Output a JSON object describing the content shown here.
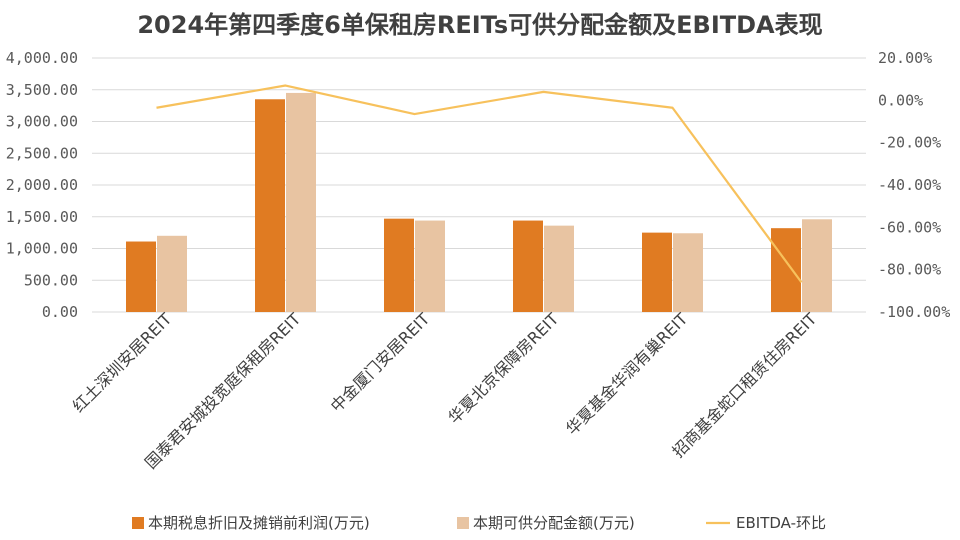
{
  "chart_data": {
    "type": "bar",
    "title": "2024年第四季度6单保租房REITs可供分配金额及EBITDA表现",
    "categories": [
      "红土深圳安居REIT",
      "国泰君安城投宽庭保租房REIT",
      "中金厦门安居REIT",
      "华夏北京保障房REIT",
      "华夏基金华润有巢REIT",
      "招商基金蛇口租赁住房REIT"
    ],
    "series": [
      {
        "name": "本期税息折旧及摊销前利润(万元)",
        "type": "bar",
        "axis": "left",
        "color": "#E07B22",
        "values": [
          1110,
          3350,
          1470,
          1440,
          1250,
          1320
        ]
      },
      {
        "name": "本期可供分配金额(万元)",
        "type": "bar",
        "axis": "left",
        "color": "#E8C4A2",
        "values": [
          1200,
          3450,
          1440,
          1360,
          1240,
          1460
        ]
      },
      {
        "name": "EBITDA-环比",
        "type": "line",
        "axis": "right",
        "color": "#F7C15C",
        "values": [
          -3.5,
          7.0,
          -6.5,
          4.0,
          -3.5,
          -86.0
        ]
      }
    ],
    "y_left": {
      "min": 0,
      "max": 4000,
      "step": 500,
      "tick_labels": [
        "0.00",
        "500.00",
        "1,000.00",
        "1,500.00",
        "2,000.00",
        "2,500.00",
        "3,000.00",
        "3,500.00",
        "4,000.00"
      ]
    },
    "y_right": {
      "min": -100,
      "max": 20,
      "step": 20,
      "tick_labels": [
        "-100.00%",
        "-80.00%",
        "-60.00%",
        "-40.00%",
        "-20.00%",
        "0.00%",
        "20.00%"
      ]
    },
    "grid": true,
    "legend_position": "bottom"
  }
}
